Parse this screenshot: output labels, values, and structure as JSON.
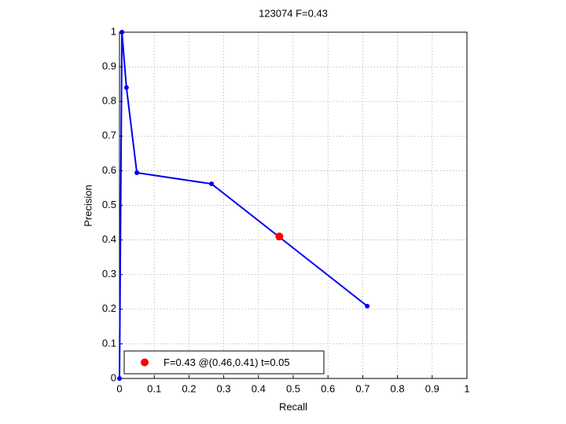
{
  "chart_data": {
    "type": "line",
    "title": "123074 F=0.43",
    "xlabel": "Recall",
    "ylabel": "Precision",
    "series": [
      {
        "color": "#0000ee",
        "x": [
          0,
          0.007,
          0.02,
          0.05,
          0.265,
          0.713
        ],
        "values": [
          0,
          1,
          0.84,
          0.594,
          0.562,
          0.209
        ]
      },
      {
        "name": "F=0.43 @(0.46,0.41) t=0.05",
        "color": "#ff0000",
        "x": [
          0.46
        ],
        "values": [
          0.41
        ]
      }
    ],
    "xlim": [
      0,
      1
    ],
    "ylim": [
      0,
      1
    ],
    "xticks": [
      0,
      0.1,
      0.2,
      0.3,
      0.4,
      0.5,
      0.6,
      0.7,
      0.8,
      0.9,
      1
    ],
    "yticks": [
      0,
      0.1,
      0.2,
      0.3,
      0.4,
      0.5,
      0.6,
      0.7,
      0.8,
      0.9,
      1
    ],
    "grid": true,
    "legend": "lower left"
  }
}
